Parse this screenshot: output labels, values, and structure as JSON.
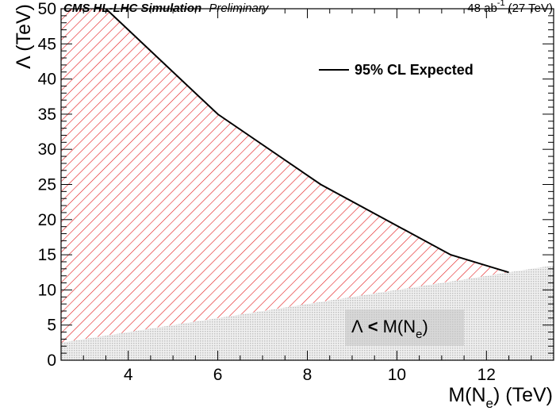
{
  "header": {
    "experiment_bold": "CMS HL-LHC Simulation",
    "experiment_status": "Preliminary",
    "luminosity": "48 ab",
    "luminosity_sup": "-1",
    "energy": "(27 TeV)"
  },
  "chart_data": {
    "type": "area",
    "xlabel": "M(N",
    "xlabel_sub": "e",
    "xlabel_unit": ") (TeV)",
    "ylabel": "Λ (TeV)",
    "xlim": [
      2.5,
      13.5
    ],
    "ylim": [
      0,
      50
    ],
    "x_ticks": [
      4,
      6,
      8,
      10,
      12
    ],
    "y_ticks": [
      0,
      5,
      10,
      15,
      20,
      25,
      30,
      35,
      40,
      45,
      50
    ],
    "grid": false,
    "legend_position": "top-right",
    "series": [
      {
        "name": "95% CL Expected",
        "color": "#000000",
        "x": [
          3.5,
          6.0,
          8.3,
          11.2,
          12.5
        ],
        "y": [
          50.0,
          35.0,
          25.0,
          15.0,
          12.5
        ]
      }
    ],
    "excluded_fill_color": "#e41a1c",
    "forbidden_region": {
      "label_lambda": "Λ",
      "label_lt": "<",
      "label_m": "M(N",
      "label_sub": "e",
      "label_close": ")",
      "x": [
        2.5,
        13.5
      ],
      "y": [
        2.5,
        13.5
      ],
      "color": "#cccccc"
    }
  }
}
